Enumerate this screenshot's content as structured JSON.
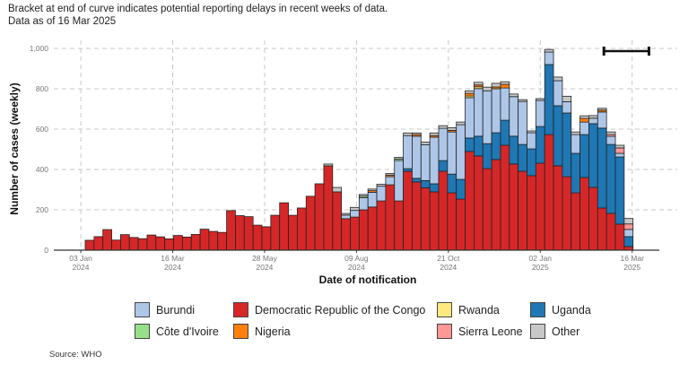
{
  "subtitle": {
    "line1": "Bracket at end of curve indicates potential reporting delays in recent weeks of data.",
    "line2": "Data as of 16 Mar 2025"
  },
  "source": "Source: WHO",
  "chart_data": {
    "type": "bar",
    "stacked": true,
    "title": "",
    "xlabel": "Date of notification",
    "ylabel": "Number of cases (weekly)",
    "ylim": [
      0,
      1050
    ],
    "yticks": [
      0,
      200,
      400,
      600,
      800,
      1000
    ],
    "ytick_labels": [
      "0",
      "200",
      "400",
      "600",
      "800",
      "1,000"
    ],
    "xticks": [
      {
        "label1": "03 Jan",
        "label2": "2024",
        "week": -0.5
      },
      {
        "label1": "16 Mar",
        "label2": "2024",
        "week": 9.9
      },
      {
        "label1": "28 May",
        "label2": "2024",
        "week": 20.3
      },
      {
        "label1": "09 Aug",
        "label2": "2024",
        "week": 30.7
      },
      {
        "label1": "21 Oct",
        "label2": "2024",
        "week": 41.1
      },
      {
        "label1": "02 Jan",
        "label2": "2025",
        "week": 51.5
      },
      {
        "label1": "16 Mar",
        "label2": "2025",
        "week": 61.9
      }
    ],
    "grid": true,
    "legend_position": "bottom",
    "bracket": {
      "note": "potential reporting delays",
      "from_week": 58.7,
      "to_week": 63.8
    },
    "series_order": [
      "Democratic Republic of the Congo",
      "Uganda",
      "Burundi",
      "Côte d'Ivoire",
      "Rwanda",
      "Nigeria",
      "Sierra Leone",
      "Other"
    ],
    "colors": {
      "Burundi": "#aec7e8",
      "Democratic Republic of the Congo": "#d62728",
      "Rwanda": "#ffe97f",
      "Uganda": "#1f77b4",
      "Côte d'Ivoire": "#98df8a",
      "Nigeria": "#ff7f0e",
      "Sierra Leone": "#ff9896",
      "Other": "#c7c7c7"
    },
    "weeks": 62,
    "series": [
      {
        "name": "Democratic Republic of the Congo",
        "values": [
          49,
          67,
          102,
          50,
          77,
          63,
          57,
          75,
          66,
          56,
          73,
          65,
          78,
          104,
          93,
          88,
          196,
          171,
          166,
          124,
          116,
          173,
          235,
          173,
          209,
          267,
          329,
          418,
          289,
          156,
          164,
          200,
          214,
          244,
          324,
          244,
          391,
          338,
          309,
          289,
          391,
          284,
          253,
          489,
          467,
          404,
          449,
          520,
          427,
          391,
          369,
          431,
          573,
          418,
          364,
          284,
          360,
          311,
          209,
          182,
          129,
          18
        ]
      },
      {
        "name": "Uganda",
        "values": [
          0,
          0,
          0,
          0,
          0,
          0,
          0,
          0,
          0,
          0,
          0,
          0,
          0,
          0,
          0,
          0,
          0,
          0,
          0,
          0,
          0,
          0,
          0,
          0,
          0,
          0,
          0,
          0,
          0,
          0,
          0,
          0,
          0,
          0,
          0,
          0,
          13,
          18,
          36,
          40,
          53,
          93,
          98,
          67,
          98,
          124,
          133,
          124,
          138,
          133,
          133,
          182,
          347,
          298,
          316,
          196,
          213,
          316,
          396,
          342,
          333,
          49
        ]
      },
      {
        "name": "Burundi",
        "values": [
          0,
          0,
          0,
          0,
          0,
          0,
          0,
          0,
          0,
          0,
          0,
          0,
          0,
          0,
          0,
          0,
          0,
          0,
          0,
          0,
          0,
          0,
          0,
          0,
          0,
          0,
          0,
          0,
          0,
          18,
          33,
          60,
          73,
          73,
          40,
          200,
          164,
          209,
          178,
          231,
          160,
          209,
          271,
          200,
          236,
          262,
          218,
          160,
          196,
          213,
          80,
          129,
          62,
          124,
          56,
          93,
          62,
          27,
          80,
          40,
          18,
          36
        ]
      },
      {
        "name": "Côte d'Ivoire",
        "values": [
          0,
          0,
          0,
          0,
          0,
          0,
          0,
          0,
          0,
          0,
          0,
          0,
          0,
          0,
          0,
          0,
          0,
          0,
          0,
          0,
          0,
          0,
          0,
          0,
          0,
          0,
          0,
          0,
          0,
          0,
          0,
          8,
          0,
          0,
          0,
          8,
          0,
          0,
          0,
          0,
          0,
          0,
          0,
          0,
          0,
          0,
          0,
          0,
          0,
          0,
          0,
          0,
          0,
          0,
          0,
          0,
          0,
          0,
          0,
          0,
          0,
          0
        ]
      },
      {
        "name": "Rwanda",
        "values": [
          0,
          0,
          0,
          0,
          0,
          0,
          0,
          0,
          0,
          0,
          0,
          0,
          0,
          0,
          0,
          0,
          0,
          0,
          0,
          0,
          0,
          0,
          0,
          0,
          0,
          0,
          0,
          0,
          0,
          0,
          0,
          0,
          0,
          0,
          0,
          0,
          0,
          0,
          0,
          0,
          0,
          0,
          0,
          8,
          9,
          0,
          0,
          0,
          0,
          0,
          0,
          0,
          0,
          0,
          0,
          0,
          0,
          0,
          0,
          0,
          0,
          0
        ]
      },
      {
        "name": "Nigeria",
        "values": [
          0,
          0,
          0,
          0,
          0,
          0,
          0,
          0,
          0,
          0,
          0,
          0,
          0,
          0,
          0,
          0,
          0,
          0,
          0,
          0,
          0,
          0,
          0,
          0,
          0,
          0,
          0,
          0,
          0,
          0,
          0,
          0,
          8,
          0,
          8,
          0,
          0,
          8,
          0,
          8,
          0,
          8,
          0,
          13,
          9,
          0,
          9,
          18,
          0,
          0,
          0,
          0,
          0,
          0,
          0,
          0,
          18,
          0,
          9,
          0,
          0,
          0
        ]
      },
      {
        "name": "Sierra Leone",
        "values": [
          0,
          0,
          0,
          0,
          0,
          0,
          0,
          0,
          0,
          0,
          0,
          0,
          0,
          0,
          0,
          0,
          0,
          0,
          0,
          0,
          0,
          0,
          0,
          0,
          0,
          0,
          0,
          0,
          0,
          0,
          0,
          0,
          0,
          0,
          0,
          0,
          0,
          0,
          0,
          0,
          0,
          0,
          0,
          0,
          0,
          0,
          0,
          0,
          0,
          0,
          0,
          0,
          0,
          0,
          0,
          0,
          0,
          0,
          0,
          9,
          27,
          27
        ]
      },
      {
        "name": "Other",
        "values": [
          0,
          0,
          0,
          0,
          0,
          0,
          0,
          0,
          0,
          0,
          0,
          0,
          0,
          0,
          0,
          0,
          0,
          0,
          0,
          0,
          0,
          0,
          0,
          0,
          0,
          0,
          0,
          9,
          22,
          8,
          15,
          8,
          8,
          10,
          8,
          8,
          13,
          8,
          13,
          13,
          13,
          13,
          13,
          13,
          13,
          18,
          18,
          13,
          13,
          9,
          9,
          9,
          13,
          18,
          27,
          13,
          13,
          13,
          9,
          13,
          13,
          27
        ]
      }
    ]
  },
  "legend": [
    {
      "label": "Burundi",
      "key": "Burundi"
    },
    {
      "label": "Democratic Republic of the Congo",
      "key": "Democratic Republic of the Congo"
    },
    {
      "label": "Rwanda",
      "key": "Rwanda"
    },
    {
      "label": "Uganda",
      "key": "Uganda"
    },
    {
      "label": "Côte d'Ivoire",
      "key": "Côte d'Ivoire"
    },
    {
      "label": "Nigeria",
      "key": "Nigeria"
    },
    {
      "label": "Sierra Leone",
      "key": "Sierra Leone"
    },
    {
      "label": "Other",
      "key": "Other"
    }
  ]
}
